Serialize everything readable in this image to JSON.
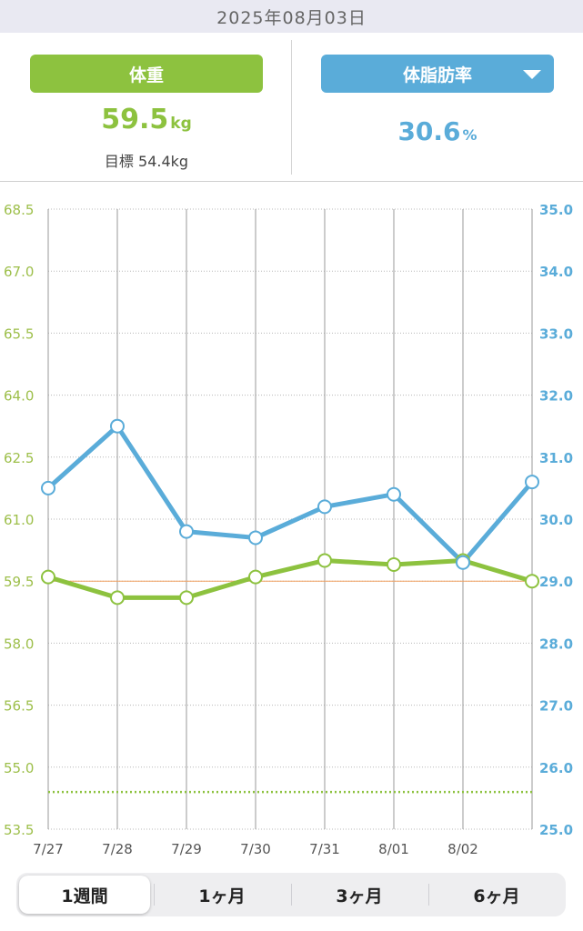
{
  "header": {
    "date": "2025年08月03日"
  },
  "weight": {
    "label": "体重",
    "value": "59.5",
    "unit": "kg",
    "goal_text": "目標 54.4kg"
  },
  "body_fat": {
    "label": "体脂肪率",
    "value": "30.6",
    "unit": "%",
    "dropdown_icon": "triangle-down-icon"
  },
  "segments": [
    "1週間",
    "1ヶ月",
    "3ヶ月",
    "6ヶ月"
  ],
  "selected_segment": "1週間",
  "colors": {
    "weight": "#8dc23f",
    "body_fat": "#5aacd9",
    "current_line": "#f0a060",
    "grid": "#9a9a9a"
  },
  "chart_data": {
    "type": "line",
    "categories": [
      "7/27",
      "7/28",
      "7/29",
      "7/30",
      "7/31",
      "8/01",
      "8/02",
      "8/03"
    ],
    "x_tick_labels": [
      "7/27",
      "7/28",
      "7/29",
      "7/30",
      "7/31",
      "8/01",
      "8/02"
    ],
    "y_left": {
      "min": 53.5,
      "max": 68.5,
      "ticks": [
        "53.5",
        "55.0",
        "56.5",
        "58.0",
        "59.5",
        "61.0",
        "62.5",
        "64.0",
        "65.5",
        "67.0",
        "68.5"
      ]
    },
    "y_right": {
      "min": 25.0,
      "max": 35.0,
      "ticks": [
        "25.0",
        "26.0",
        "27.0",
        "28.0",
        "29.0",
        "30.0",
        "31.0",
        "32.0",
        "33.0",
        "34.0",
        "35.0"
      ]
    },
    "series": [
      {
        "axis": "left",
        "color": "#8dc23f",
        "values": [
          59.6,
          59.1,
          59.1,
          59.6,
          60.0,
          59.9,
          60.0,
          59.5
        ]
      },
      {
        "axis": "right",
        "color": "#5aacd9",
        "values": [
          30.5,
          31.5,
          29.8,
          29.7,
          30.2,
          30.4,
          29.3,
          30.6
        ]
      }
    ],
    "reference_lines": [
      {
        "axis": "left",
        "value": 59.5,
        "color": "#f0a060",
        "style": "solid"
      },
      {
        "axis": "left",
        "value": 54.4,
        "color": "#8dc23f",
        "style": "dotted"
      }
    ],
    "grid": true
  }
}
